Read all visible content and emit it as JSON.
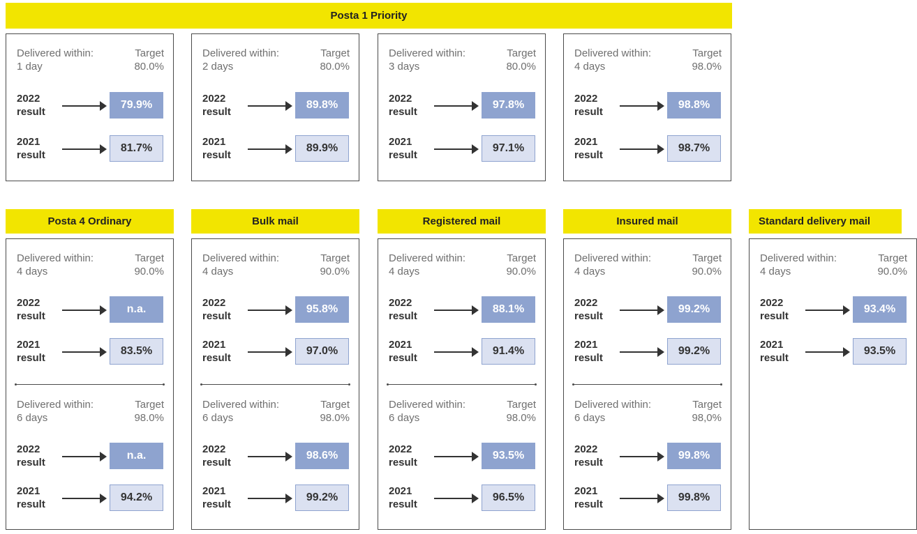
{
  "priority": {
    "title": "Posta 1 Priority",
    "cards": [
      {
        "within_label": "Delivered within:",
        "days": "1 day",
        "target_label": "Target",
        "target": "80.0%",
        "rows": [
          {
            "year": "2022",
            "word": "result",
            "value": "79.9%"
          },
          {
            "year": "2021",
            "word": "result",
            "value": "81.7%"
          }
        ]
      },
      {
        "within_label": "Delivered within:",
        "days": "2 days",
        "target_label": "Target",
        "target": "80.0%",
        "rows": [
          {
            "year": "2022",
            "word": "result",
            "value": "89.8%"
          },
          {
            "year": "2021",
            "word": "result",
            "value": "89.9%"
          }
        ]
      },
      {
        "within_label": "Delivered within:",
        "days": "3 days",
        "target_label": "Target",
        "target": "80.0%",
        "rows": [
          {
            "year": "2022",
            "word": "result",
            "value": "97.8%"
          },
          {
            "year": "2021",
            "word": "result",
            "value": "97.1%"
          }
        ]
      },
      {
        "within_label": "Delivered within:",
        "days": "4 days",
        "target_label": "Target",
        "target": "98.0%",
        "rows": [
          {
            "year": "2022",
            "word": "result",
            "value": "98.8%"
          },
          {
            "year": "2021",
            "word": "result",
            "value": "98.7%"
          }
        ]
      }
    ]
  },
  "categories": [
    {
      "title": "Posta 4 Ordinary",
      "blocks": [
        {
          "within_label": "Delivered within:",
          "days": "4 days",
          "target_label": "Target",
          "target": "90.0%",
          "rows": [
            {
              "year": "2022",
              "word": "result",
              "value": "n.a."
            },
            {
              "year": "2021",
              "word": "result",
              "value": "83.5%"
            }
          ]
        },
        {
          "within_label": "Delivered within:",
          "days": "6 days",
          "target_label": "Target",
          "target": "98.0%",
          "rows": [
            {
              "year": "2022",
              "word": "result",
              "value": "n.a."
            },
            {
              "year": "2021",
              "word": "result",
              "value": "94.2%"
            }
          ]
        }
      ]
    },
    {
      "title": "Bulk mail",
      "blocks": [
        {
          "within_label": "Delivered within:",
          "days": "4 days",
          "target_label": "Target",
          "target": "90.0%",
          "rows": [
            {
              "year": "2022",
              "word": "result",
              "value": "95.8%"
            },
            {
              "year": "2021",
              "word": "result",
              "value": "97.0%"
            }
          ]
        },
        {
          "within_label": "Delivered within:",
          "days": "6 days",
          "target_label": "Target",
          "target": "98.0%",
          "rows": [
            {
              "year": "2022",
              "word": "result",
              "value": "98.6%"
            },
            {
              "year": "2021",
              "word": "result",
              "value": "99.2%"
            }
          ]
        }
      ]
    },
    {
      "title": "Registered mail",
      "blocks": [
        {
          "within_label": "Delivered within:",
          "days": "4 days",
          "target_label": "Target",
          "target": "90.0%",
          "rows": [
            {
              "year": "2022",
              "word": "result",
              "value": "88.1%"
            },
            {
              "year": "2021",
              "word": "result",
              "value": "91.4%"
            }
          ]
        },
        {
          "within_label": "Delivered within:",
          "days": "6 days",
          "target_label": "Target",
          "target": "98.0%",
          "rows": [
            {
              "year": "2022",
              "word": "result",
              "value": "93.5%"
            },
            {
              "year": "2021",
              "word": "result",
              "value": "96.5%"
            }
          ]
        }
      ]
    },
    {
      "title": "Insured mail",
      "blocks": [
        {
          "within_label": "Delivered within:",
          "days": "4 days",
          "target_label": "Target",
          "target": "90.0%",
          "rows": [
            {
              "year": "2022",
              "word": "result",
              "value": "99.2%"
            },
            {
              "year": "2021",
              "word": "result",
              "value": "99.2%"
            }
          ]
        },
        {
          "within_label": "Delivered within:",
          "days": "6 days",
          "target_label": "Target",
          "target": "98,0%",
          "rows": [
            {
              "year": "2022",
              "word": "result",
              "value": "99.8%"
            },
            {
              "year": "2021",
              "word": "result",
              "value": "99.8%"
            }
          ]
        }
      ]
    },
    {
      "title": "Standard delivery mail",
      "blocks": [
        {
          "within_label": "Delivered within:",
          "days": "4 days",
          "target_label": "Target",
          "target": "90.0%",
          "rows": [
            {
              "year": "2022",
              "word": "result",
              "value": "93.4%"
            },
            {
              "year": "2021",
              "word": "result",
              "value": "93.5%"
            }
          ]
        }
      ]
    }
  ],
  "colors": {
    "banner": "#f2e500",
    "result_2022": "#8ea3cf",
    "result_2021": "#dbe1f1"
  }
}
